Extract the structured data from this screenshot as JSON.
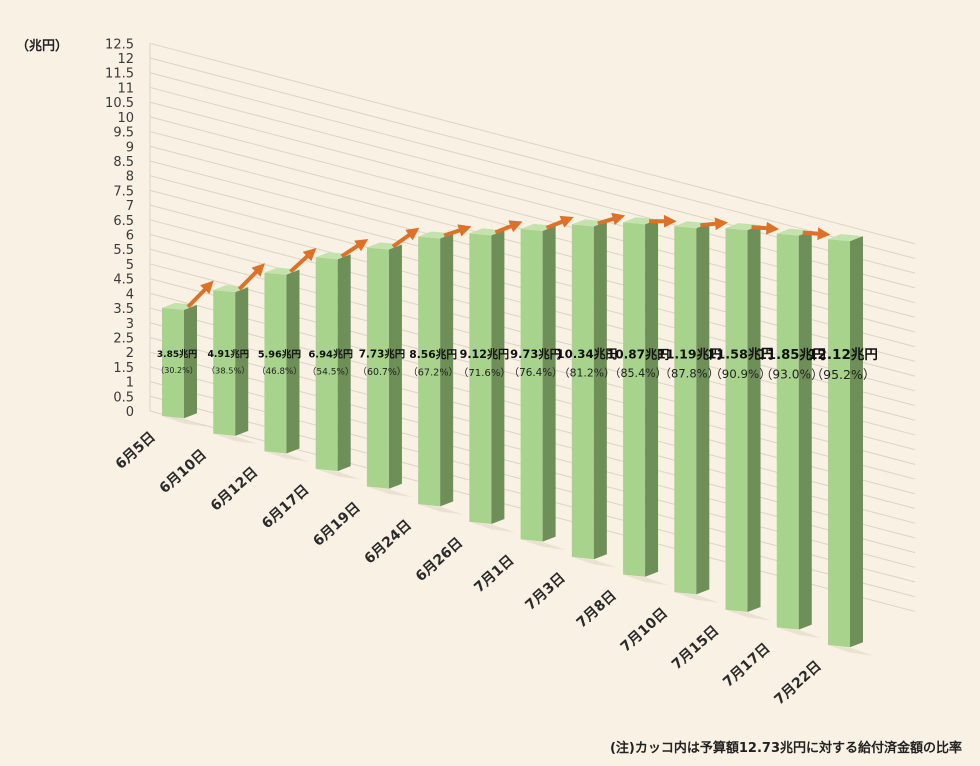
{
  "chart_data": {
    "type": "bar",
    "title": "",
    "xlabel": "",
    "ylabel": "",
    "unit_label": "（兆円）",
    "note": "(注)カッコ内は予算額12.73兆円に対する給付済金額の比率",
    "ylim": [
      0,
      12.5
    ],
    "yticks": [
      "0",
      "0.5",
      "1",
      "1.5",
      "2",
      "2.5",
      "3",
      "3.5",
      "4",
      "4.5",
      "5",
      "5.5",
      "6",
      "6.5",
      "7",
      "7.5",
      "8",
      "8.5",
      "9",
      "9.5",
      "10",
      "10.5",
      "11",
      "11.5",
      "12",
      "12.5"
    ],
    "grid": true,
    "categories": [
      "6月5日",
      "6月10日",
      "6月12日",
      "6月17日",
      "6月19日",
      "6月24日",
      "6月26日",
      "7月1日",
      "7月3日",
      "7月8日",
      "7月10日",
      "7月15日",
      "7月17日",
      "7月22日"
    ],
    "values": [
      3.85,
      4.91,
      5.96,
      6.94,
      7.73,
      8.56,
      9.12,
      9.73,
      10.34,
      10.87,
      11.19,
      11.58,
      11.85,
      12.12
    ],
    "value_labels": [
      "3.85兆円",
      "4.91兆円",
      "5.96兆円",
      "6.94兆円",
      "7.73兆円",
      "8.56兆円",
      "9.12兆円",
      "9.73兆円",
      "10.34兆円",
      "10.87兆円",
      "11.19兆円",
      "11.58兆円",
      "11.85兆円",
      "12.12兆円"
    ],
    "percent_labels": [
      "（30.2%）",
      "（38.5%）",
      "（46.8%）",
      "（54.5%）",
      "（60.7%）",
      "（67.2%）",
      "（71.6%）",
      "（76.4%）",
      "（81.2%）",
      "（85.4%）",
      "（87.8%）",
      "（90.9%）",
      "（93.0%）",
      "（95.2%）"
    ],
    "colors": {
      "bar_front": "#a8d38d",
      "bar_side": "#6f8f58",
      "bar_top": "#c4e2ad",
      "arrow": "#dd7128",
      "grid": "#dcd5c6"
    }
  }
}
